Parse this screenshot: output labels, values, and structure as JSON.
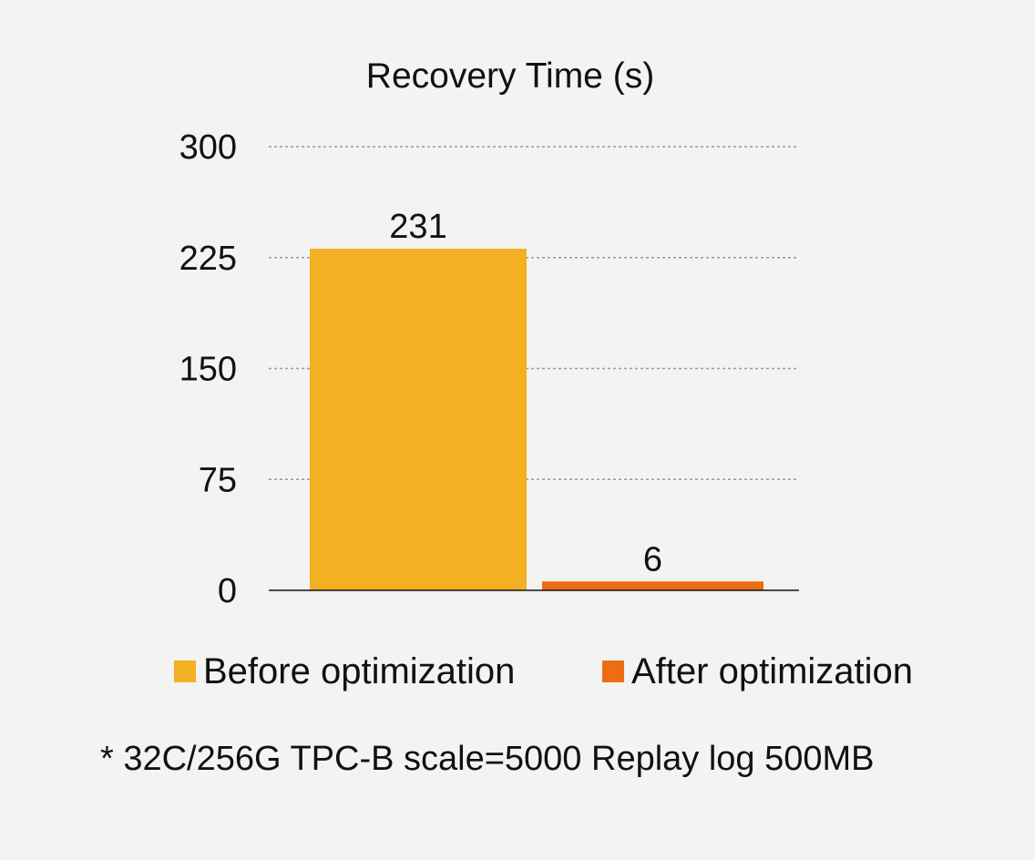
{
  "chart_data": {
    "type": "bar",
    "title": "Recovery Time (s)",
    "xlabel": "",
    "ylabel": "",
    "ylim": [
      0,
      300
    ],
    "yticks": [
      0,
      75,
      150,
      225,
      300
    ],
    "grid": true,
    "legend_position": "bottom",
    "series": [
      {
        "name": "Before optimization",
        "value": 231,
        "color": "#f2b022"
      },
      {
        "name": "After optimization",
        "value": 6,
        "color": "#ec6d12"
      }
    ],
    "footnote": "* 32C/256G TPC-B scale=5000 Replay log 500MB"
  }
}
